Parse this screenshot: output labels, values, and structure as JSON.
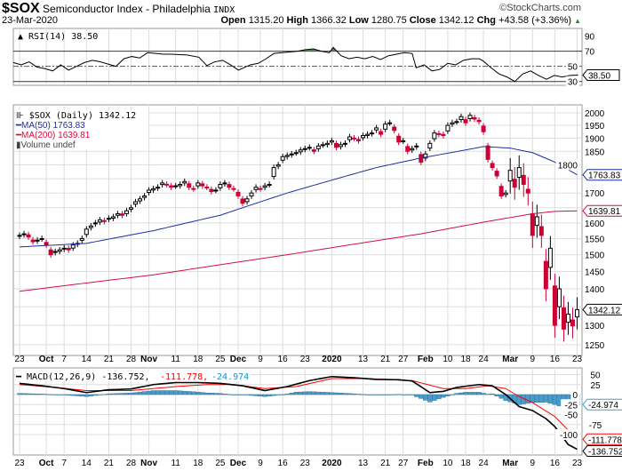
{
  "header": {
    "symbol": "$SOX",
    "name": "Semiconductor Index - Philadelphia",
    "exchange": "INDX",
    "brand": "©StockCharts.com",
    "date": "23-Mar-2020",
    "open_label": "Open",
    "open": "1315.20",
    "high_label": "High",
    "high": "1366.32",
    "low_label": "Low",
    "low": "1280.75",
    "close_label": "Close",
    "close": "1342.12",
    "chg_label": "Chg",
    "chg": "+43.58 (+3.36%)"
  },
  "colors": {
    "up": "#000000",
    "down": "#cc0033",
    "ma50": "#1f2f9f",
    "ma200": "#d40f3c",
    "hist": "#4b9bc9",
    "signal": "#ff0000",
    "grid": "#dddddd"
  },
  "chart_data": [
    {
      "type": "candlestick",
      "title": "$SOX (Daily) 1342.12",
      "legend": [
        "$SOX (Daily) 1342.12",
        "MA(50) 1763.83",
        "MA(200) 1639.81",
        "Volume undef"
      ],
      "scale": "log",
      "ylim": [
        1225,
        2030
      ],
      "yticks": [
        1250,
        1300,
        1350,
        1400,
        1450,
        1500,
        1550,
        1600,
        1650,
        1700,
        1750,
        1800,
        1850,
        1900,
        1950,
        2000
      ],
      "xticks": [
        {
          "i": 0,
          "label": "23"
        },
        {
          "i": 6,
          "label": "Oct",
          "bold": true
        },
        {
          "i": 10,
          "label": "7"
        },
        {
          "i": 15,
          "label": "14"
        },
        {
          "i": 20,
          "label": "21"
        },
        {
          "i": 25,
          "label": "28"
        },
        {
          "i": 29,
          "label": "Nov",
          "bold": true
        },
        {
          "i": 35,
          "label": "11"
        },
        {
          "i": 40,
          "label": "18"
        },
        {
          "i": 45,
          "label": "25"
        },
        {
          "i": 49,
          "label": "Dec",
          "bold": true
        },
        {
          "i": 54,
          "label": "9"
        },
        {
          "i": 59,
          "label": "16"
        },
        {
          "i": 64,
          "label": "23"
        },
        {
          "i": 70,
          "label": "2020",
          "bold": true
        },
        {
          "i": 77,
          "label": "13"
        },
        {
          "i": 82,
          "label": "21"
        },
        {
          "i": 86,
          "label": "27"
        },
        {
          "i": 91,
          "label": "Feb",
          "bold": true
        },
        {
          "i": 96,
          "label": "10"
        },
        {
          "i": 100,
          "label": "18"
        },
        {
          "i": 104,
          "label": "24"
        },
        {
          "i": 110,
          "label": "Mar",
          "bold": true
        },
        {
          "i": 115,
          "label": "9"
        },
        {
          "i": 120,
          "label": "16"
        },
        {
          "i": 125,
          "label": "23"
        }
      ],
      "close": [
        1560,
        1565,
        1555,
        1540,
        1545,
        1550,
        1530,
        1500,
        1510,
        1515,
        1520,
        1515,
        1530,
        1535,
        1550,
        1580,
        1590,
        1600,
        1610,
        1605,
        1615,
        1620,
        1630,
        1625,
        1640,
        1650,
        1670,
        1680,
        1690,
        1710,
        1715,
        1720,
        1735,
        1730,
        1720,
        1725,
        1730,
        1740,
        1720,
        1715,
        1735,
        1725,
        1720,
        1705,
        1710,
        1730,
        1735,
        1720,
        1715,
        1690,
        1665,
        1680,
        1700,
        1720,
        1715,
        1725,
        1730,
        1790,
        1800,
        1830,
        1835,
        1840,
        1845,
        1855,
        1860,
        1865,
        1850,
        1870,
        1875,
        1880,
        1890,
        1865,
        1875,
        1880,
        1905,
        1900,
        1890,
        1910,
        1915,
        1920,
        1940,
        1915,
        1955,
        1960,
        1930,
        1885,
        1890,
        1850,
        1860,
        1870,
        1810,
        1840,
        1880,
        1920,
        1915,
        1910,
        1950,
        1960,
        1965,
        1985,
        1960,
        1990,
        1975,
        1965,
        1925,
        1820,
        1790,
        1760,
        1690,
        1700,
        1780,
        1720,
        1790,
        1730,
        1700,
        1560,
        1620,
        1560,
        1400,
        1520,
        1300,
        1400,
        1290,
        1330,
        1298.54,
        1342.12
      ],
      "ma50": {
        "label": "MA(50)",
        "value": "1763.83",
        "points": [
          [
            0,
            1524
          ],
          [
            15,
            1535
          ],
          [
            30,
            1575
          ],
          [
            45,
            1625
          ],
          [
            60,
            1700
          ],
          [
            70,
            1745
          ],
          [
            80,
            1790
          ],
          [
            90,
            1825
          ],
          [
            100,
            1855
          ],
          [
            104,
            1868
          ],
          [
            110,
            1862
          ],
          [
            115,
            1845
          ],
          [
            120,
            1810
          ],
          [
            125,
            1763.83
          ]
        ]
      },
      "ma200": {
        "label": "MA(200)",
        "value": "1639.81",
        "points": [
          [
            0,
            1393
          ],
          [
            30,
            1440
          ],
          [
            60,
            1500
          ],
          [
            90,
            1565
          ],
          [
            105,
            1605
          ],
          [
            115,
            1630
          ],
          [
            120,
            1638
          ],
          [
            125,
            1639.81
          ]
        ]
      },
      "last_label": "1342.12"
    },
    {
      "type": "line",
      "title": "RSI(14) 38.50",
      "ylim": [
        25,
        100
      ],
      "yticks": [
        30,
        50,
        70,
        90
      ],
      "levels": [
        30,
        50,
        70
      ],
      "last_label": "38.50",
      "points": [
        [
          0,
          55
        ],
        [
          2,
          52
        ],
        [
          4,
          56
        ],
        [
          6,
          49
        ],
        [
          8,
          47
        ],
        [
          10,
          44
        ],
        [
          12,
          52
        ],
        [
          14,
          45
        ],
        [
          16,
          50
        ],
        [
          18,
          55
        ],
        [
          20,
          58
        ],
        [
          22,
          56
        ],
        [
          24,
          53
        ],
        [
          26,
          50
        ],
        [
          28,
          60
        ],
        [
          30,
          63
        ],
        [
          32,
          61
        ],
        [
          34,
          68
        ],
        [
          36,
          67
        ],
        [
          38,
          66
        ],
        [
          40,
          66
        ],
        [
          44,
          65
        ],
        [
          47,
          62
        ],
        [
          49,
          51
        ],
        [
          51,
          56
        ],
        [
          53,
          58
        ],
        [
          55,
          52
        ],
        [
          57,
          45
        ],
        [
          60,
          52
        ],
        [
          62,
          54
        ],
        [
          64,
          60
        ],
        [
          66,
          67
        ],
        [
          68,
          68
        ],
        [
          70,
          69
        ],
        [
          72,
          70
        ],
        [
          74,
          72
        ],
        [
          76,
          73
        ],
        [
          78,
          70
        ],
        [
          80,
          68
        ],
        [
          81,
          75
        ],
        [
          83,
          64
        ],
        [
          85,
          60
        ],
        [
          87,
          62
        ],
        [
          89,
          60
        ],
        [
          91,
          63
        ],
        [
          93,
          59
        ],
        [
          95,
          64
        ],
        [
          97,
          66
        ],
        [
          99,
          68
        ],
        [
          101,
          67
        ],
        [
          102,
          48
        ],
        [
          104,
          52
        ],
        [
          106,
          44
        ],
        [
          108,
          46
        ],
        [
          110,
          54
        ],
        [
          112,
          52
        ],
        [
          114,
          58
        ],
        [
          116,
          60
        ],
        [
          118,
          60
        ],
        [
          119,
          57
        ],
        [
          121,
          48
        ],
        [
          123,
          40
        ],
        [
          125,
          36
        ],
        [
          127,
          30
        ],
        [
          129,
          40
        ],
        [
          131,
          44
        ],
        [
          133,
          38
        ],
        [
          135,
          33
        ],
        [
          137,
          38
        ],
        [
          139,
          36
        ],
        [
          141,
          38
        ],
        [
          143,
          38.5
        ]
      ],
      "x_scale_days": 144
    },
    {
      "type": "line",
      "title": "MACD(12,26,9)",
      "legend": [
        "MACD(12,26,9) -136.752",
        "-111.778",
        "-24.974"
      ],
      "ylim": [
        -145,
        60
      ],
      "yticks": [
        50,
        25,
        0,
        -25,
        -50,
        -75,
        -100
      ],
      "macd": [
        [
          0,
          28
        ],
        [
          5,
          22
        ],
        [
          10,
          15
        ],
        [
          15,
          5
        ],
        [
          20,
          12
        ],
        [
          25,
          14
        ],
        [
          30,
          25
        ],
        [
          35,
          30
        ],
        [
          40,
          30
        ],
        [
          45,
          28
        ],
        [
          50,
          22
        ],
        [
          55,
          10
        ],
        [
          60,
          20
        ],
        [
          65,
          35
        ],
        [
          70,
          45
        ],
        [
          75,
          42
        ],
        [
          80,
          38
        ],
        [
          85,
          37
        ],
        [
          88,
          34
        ],
        [
          92,
          5
        ],
        [
          95,
          8
        ],
        [
          98,
          18
        ],
        [
          103,
          25
        ],
        [
          106,
          22
        ],
        [
          109,
          0
        ],
        [
          112,
          -30
        ],
        [
          115,
          -40
        ],
        [
          118,
          -60
        ],
        [
          120,
          -80
        ],
        [
          123,
          -125
        ],
        [
          125,
          -136.752
        ]
      ],
      "signal": [
        [
          0,
          25
        ],
        [
          8,
          18
        ],
        [
          15,
          10
        ],
        [
          25,
          10
        ],
        [
          35,
          20
        ],
        [
          42,
          25
        ],
        [
          48,
          25
        ],
        [
          55,
          15
        ],
        [
          62,
          20
        ],
        [
          70,
          40
        ],
        [
          78,
          40
        ],
        [
          88,
          35
        ],
        [
          95,
          15
        ],
        [
          100,
          15
        ],
        [
          105,
          22
        ],
        [
          109,
          15
        ],
        [
          112,
          -5
        ],
        [
          115,
          -20
        ],
        [
          120,
          -55
        ],
        [
          125,
          -111.778
        ]
      ],
      "labels": {
        "macd": "-136.752",
        "signal": "-111.778",
        "hist": "-24.974"
      }
    }
  ]
}
